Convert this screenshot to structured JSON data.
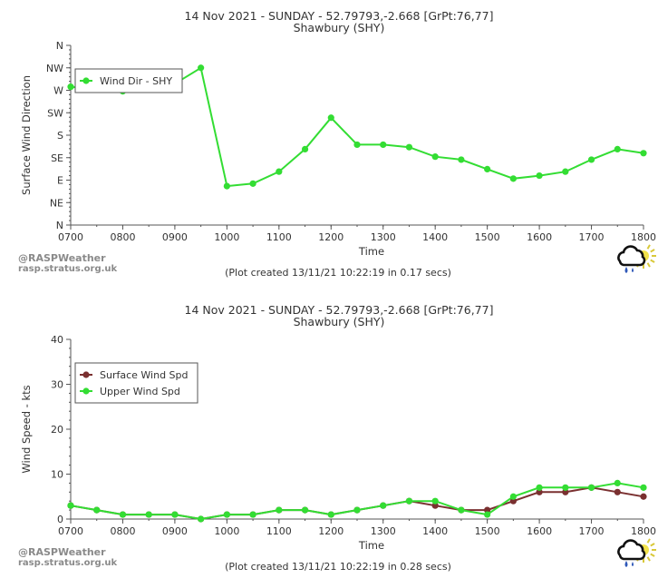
{
  "credit": {
    "line1": "@RASPWeather",
    "line2": "rasp.stratus.org.uk"
  },
  "logo_icon": "cloud-rain-sun-icon",
  "colors": {
    "green": "#33dd33",
    "brown": "#7a3030",
    "axis": "#555555",
    "text": "#333333"
  },
  "chart_data": [
    {
      "type": "line",
      "title": "14 Nov 2021 - SUNDAY - 52.79793,-2.668 [GrPt:76,77]",
      "subtitle": "Shawbury (SHY)",
      "xlabel": "Time",
      "ylabel": "Surface Wind Direction",
      "footnote": "(Plot created 13/11/21 10:22:19 in 0.17 secs)",
      "x_ticks": [
        "0700",
        "0800",
        "0900",
        "1000",
        "1100",
        "1200",
        "1300",
        "1400",
        "1500",
        "1600",
        "1700",
        "1800"
      ],
      "y_tick_labels": [
        "N",
        "NE",
        "E",
        "SE",
        "S",
        "SW",
        "W",
        "NW",
        "N"
      ],
      "y_tick_values": [
        0,
        45,
        90,
        135,
        180,
        225,
        270,
        315,
        360
      ],
      "xlim": [
        7,
        18
      ],
      "ylim": [
        0,
        360
      ],
      "legend_position": "top-left",
      "grid": false,
      "series": [
        {
          "name": "Wind Dir - SHY",
          "color": "#33dd33",
          "x": [
            7,
            7.5,
            8,
            8.5,
            9,
            9.5,
            10,
            10.5,
            11,
            11.5,
            12,
            12.5,
            13,
            13.5,
            14,
            14.5,
            15,
            15.5,
            16,
            16.5,
            17,
            17.5,
            18
          ],
          "values": [
            277,
            272,
            268,
            280,
            283,
            315,
            78,
            83,
            107,
            152,
            215,
            161,
            161,
            156,
            137,
            131,
            112,
            93,
            99,
            107,
            131,
            152,
            144
          ]
        }
      ]
    },
    {
      "type": "line",
      "title": "14 Nov 2021 - SUNDAY - 52.79793,-2.668 [GrPt:76,77]",
      "subtitle": "Shawbury (SHY)",
      "xlabel": "Time",
      "ylabel": "Wind Speed - kts",
      "footnote": "(Plot created 13/11/21 10:22:19 in 0.28 secs)",
      "x_ticks": [
        "0700",
        "0800",
        "0900",
        "1000",
        "1100",
        "1200",
        "1300",
        "1400",
        "1500",
        "1600",
        "1700",
        "1800"
      ],
      "y_tick_labels": [
        "0",
        "10",
        "20",
        "30",
        "40"
      ],
      "y_tick_values": [
        0,
        10,
        20,
        30,
        40
      ],
      "xlim": [
        7,
        18
      ],
      "ylim": [
        0,
        40
      ],
      "legend_position": "top-left",
      "grid": false,
      "series": [
        {
          "name": "Surface Wind Spd",
          "color": "#7a3030",
          "x": [
            7,
            7.5,
            8,
            8.5,
            9,
            9.5,
            10,
            10.5,
            11,
            11.5,
            12,
            12.5,
            13,
            13.5,
            14,
            14.5,
            15,
            15.5,
            16,
            16.5,
            17,
            17.5,
            18
          ],
          "values": [
            3,
            2,
            1,
            1,
            1,
            0,
            1,
            1,
            2,
            2,
            1,
            2,
            3,
            4,
            3,
            2,
            2,
            4,
            6,
            6,
            7,
            6,
            5
          ]
        },
        {
          "name": "Upper Wind Spd",
          "color": "#33dd33",
          "x": [
            7,
            7.5,
            8,
            8.5,
            9,
            9.5,
            10,
            10.5,
            11,
            11.5,
            12,
            12.5,
            13,
            13.5,
            14,
            14.5,
            15,
            15.5,
            16,
            16.5,
            17,
            17.5,
            18
          ],
          "values": [
            3,
            2,
            1,
            1,
            1,
            0,
            1,
            1,
            2,
            2,
            1,
            2,
            3,
            4,
            4,
            2,
            1,
            5,
            7,
            7,
            7,
            8,
            7
          ]
        }
      ]
    }
  ]
}
